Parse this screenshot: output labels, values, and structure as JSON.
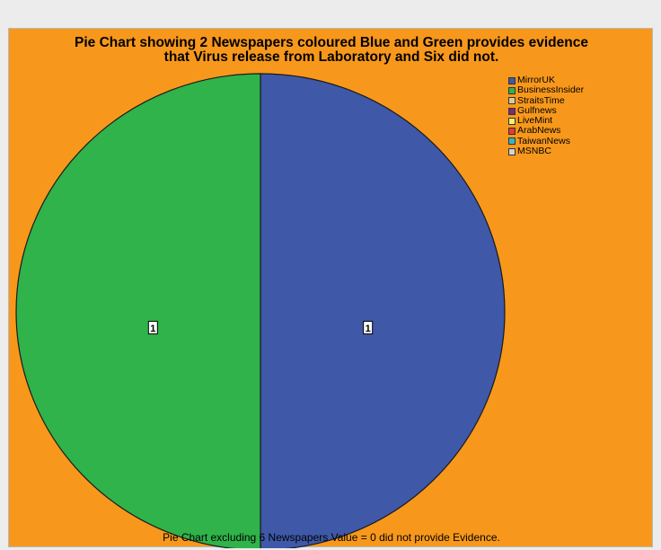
{
  "chart_data": {
    "type": "pie",
    "title_lines": [
      "Pie Chart showing 2 Newspapers coloured Blue and Green provides evidence",
      "that Virus release from Laboratory and Six did not."
    ],
    "caption": "Pie Chart excluding 6 Newspapers Value = 0 did not provide Evidence.",
    "legend_position": "top-right",
    "slices": [
      {
        "name": "MirrorUK",
        "value": 1,
        "color": "#3f58a8",
        "label": "1"
      },
      {
        "name": "BusinessInsider",
        "value": 1,
        "color": "#2fb34a",
        "label": "1"
      },
      {
        "name": "StraitsTime",
        "value": 0,
        "color": "#d8c99a"
      },
      {
        "name": "Gulfnews",
        "value": 0,
        "color": "#7b2a77"
      },
      {
        "name": "LiveMint",
        "value": 0,
        "color": "#f6ef6d"
      },
      {
        "name": "ArabNews",
        "value": 0,
        "color": "#e63b2e"
      },
      {
        "name": "TaiwanNews",
        "value": 0,
        "color": "#35b6c4"
      },
      {
        "name": "MSNBC",
        "value": 0,
        "color": "#d3d3d3"
      }
    ]
  }
}
